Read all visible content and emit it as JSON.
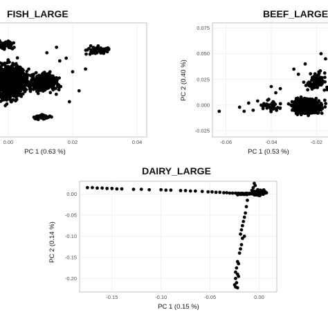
{
  "chart_data": [
    {
      "type": "scatter",
      "title": "FISH_LARGE",
      "xlabel": "PC 1 (0.63 %)",
      "ylabel": "",
      "xlim": [
        -0.009,
        0.043
      ],
      "ylim": [
        -0.105,
        0.105
      ],
      "xticks": [
        0,
        0.02,
        0.04
      ],
      "xtick_labels": [
        "0.00",
        "0.02",
        "0.04"
      ],
      "yticks": [],
      "ytick_labels": [],
      "grid": true,
      "clusters": [
        {
          "x": [
            -0.008,
            0.008
          ],
          "y": [
            -0.05,
            0.045
          ],
          "n": 900
        },
        {
          "x": [
            0.004,
            0.018
          ],
          "y": [
            -0.03,
            0.02
          ],
          "n": 300
        },
        {
          "x": [
            -0.006,
            0.003
          ],
          "y": [
            0.055,
            0.075
          ],
          "n": 80
        },
        {
          "x": [
            0.022,
            0.034
          ],
          "y": [
            0.045,
            0.065
          ],
          "n": 60
        },
        {
          "x": [
            0.007,
            0.015
          ],
          "y": [
            -0.075,
            -0.06
          ],
          "n": 40
        }
      ],
      "points": [
        [
          0.012,
          0.05
        ],
        [
          0.015,
          0.06
        ],
        [
          0.018,
          0.04
        ],
        [
          0.02,
          0.015
        ],
        [
          0.022,
          -0.02
        ],
        [
          0.019,
          -0.04
        ],
        [
          0.016,
          0.035
        ],
        [
          0.024,
          0.02
        ]
      ]
    },
    {
      "type": "scatter",
      "title": "BEEF_LARGE",
      "xlabel": "PC 1 (0.53 %)",
      "ylabel": "PC 2 (0.40 %)",
      "xlim": [
        -0.066,
        -0.014
      ],
      "ylim": [
        -0.031,
        0.08
      ],
      "xticks": [
        -0.06,
        -0.04,
        -0.02
      ],
      "xtick_labels": [
        "-0.06",
        "-0.04",
        "-0.02"
      ],
      "yticks": [
        -0.025,
        0,
        0.025,
        0.05,
        0.075
      ],
      "ytick_labels": [
        "-0.025",
        "0.000",
        "0.025",
        "0.050",
        "0.075"
      ],
      "grid": true,
      "clusters": [
        {
          "x": [
            -0.034,
            -0.014
          ],
          "y": [
            -0.012,
            0.01
          ],
          "n": 420
        },
        {
          "x": [
            -0.046,
            -0.034
          ],
          "y": [
            -0.01,
            0.008
          ],
          "n": 50
        },
        {
          "x": [
            -0.026,
            -0.014
          ],
          "y": [
            0.01,
            0.035
          ],
          "n": 90
        }
      ],
      "points": [
        [
          -0.063,
          -0.006
        ],
        [
          -0.054,
          -0.002
        ],
        [
          -0.052,
          -0.006
        ],
        [
          -0.05,
          0.002
        ],
        [
          -0.048,
          -0.005
        ],
        [
          -0.046,
          0.004
        ],
        [
          -0.04,
          0.018
        ],
        [
          -0.038,
          0.012
        ],
        [
          -0.036,
          0.016
        ],
        [
          -0.03,
          0.035
        ],
        [
          -0.028,
          0.03
        ],
        [
          -0.025,
          0.04
        ],
        [
          -0.018,
          0.05
        ],
        [
          -0.016,
          0.045
        ],
        [
          -0.02,
          0.028
        ]
      ]
    },
    {
      "type": "scatter",
      "title": "DAIRY_LARGE",
      "xlabel": "PC 1 (0.15 %)",
      "ylabel": "PC 2 (0.14 %)",
      "xlim": [
        -0.183,
        0.018
      ],
      "ylim": [
        -0.232,
        0.03
      ],
      "xticks": [
        -0.15,
        -0.1,
        -0.05,
        0
      ],
      "xtick_labels": [
        "-0.15",
        "-0.10",
        "-0.05",
        "0.00"
      ],
      "yticks": [
        -0.2,
        -0.15,
        -0.1,
        -0.05,
        0
      ],
      "ytick_labels": [
        "-0.20",
        "-0.15",
        "-0.10",
        "-0.05",
        "0.00"
      ],
      "grid": true,
      "points": [
        [
          -0.175,
          0.015
        ],
        [
          -0.17,
          0.015
        ],
        [
          -0.165,
          0.014
        ],
        [
          -0.16,
          0.014
        ],
        [
          -0.155,
          0.013
        ],
        [
          -0.15,
          0.013
        ],
        [
          -0.145,
          0.012
        ],
        [
          -0.14,
          0.012
        ],
        [
          -0.128,
          0.011
        ],
        [
          -0.12,
          0.011
        ],
        [
          -0.112,
          0.01
        ],
        [
          -0.1,
          0.01
        ],
        [
          -0.095,
          0.009
        ],
        [
          -0.09,
          0.009
        ],
        [
          -0.08,
          0.008
        ],
        [
          -0.075,
          0.008
        ],
        [
          -0.07,
          0.007
        ],
        [
          -0.065,
          0.007
        ],
        [
          -0.058,
          0.006
        ],
        [
          -0.052,
          0.005
        ],
        [
          -0.048,
          0.005
        ],
        [
          -0.044,
          0.004
        ],
        [
          -0.04,
          0.004
        ],
        [
          -0.036,
          0.003
        ],
        [
          -0.033,
          0.003
        ],
        [
          -0.03,
          0.002
        ],
        [
          -0.027,
          0.002
        ],
        [
          -0.024,
          0.002
        ],
        [
          -0.021,
          0.001
        ],
        [
          -0.018,
          0.001
        ],
        [
          -0.005,
          0.025
        ],
        [
          -0.004,
          0.02
        ],
        [
          -0.006,
          0.015
        ],
        [
          -0.012,
          -0.015
        ],
        [
          -0.013,
          -0.03
        ],
        [
          -0.014,
          -0.045
        ],
        [
          -0.015,
          -0.055
        ],
        [
          -0.016,
          -0.065
        ],
        [
          -0.017,
          -0.075
        ],
        [
          -0.018,
          -0.085
        ],
        [
          -0.019,
          -0.095
        ],
        [
          -0.015,
          -0.1
        ],
        [
          -0.017,
          -0.105
        ],
        [
          -0.018,
          -0.12
        ],
        [
          -0.019,
          -0.13
        ],
        [
          -0.02,
          -0.14
        ],
        [
          -0.022,
          -0.16
        ],
        [
          -0.021,
          -0.165
        ],
        [
          -0.023,
          -0.175
        ],
        [
          -0.024,
          -0.185
        ],
        [
          -0.022,
          -0.19
        ],
        [
          -0.021,
          -0.195
        ],
        [
          -0.024,
          -0.2
        ],
        [
          -0.023,
          -0.21
        ],
        [
          -0.025,
          -0.215
        ],
        [
          -0.024,
          -0.22
        ],
        [
          -0.022,
          -0.222
        ]
      ],
      "clusters": [
        {
          "x": [
            -0.01,
            0.01
          ],
          "y": [
            -0.005,
            0.012
          ],
          "n": 140
        },
        {
          "x": [
            -0.026,
            -0.005
          ],
          "y": [
            -0.003,
            0.004
          ],
          "n": 40
        }
      ]
    }
  ]
}
